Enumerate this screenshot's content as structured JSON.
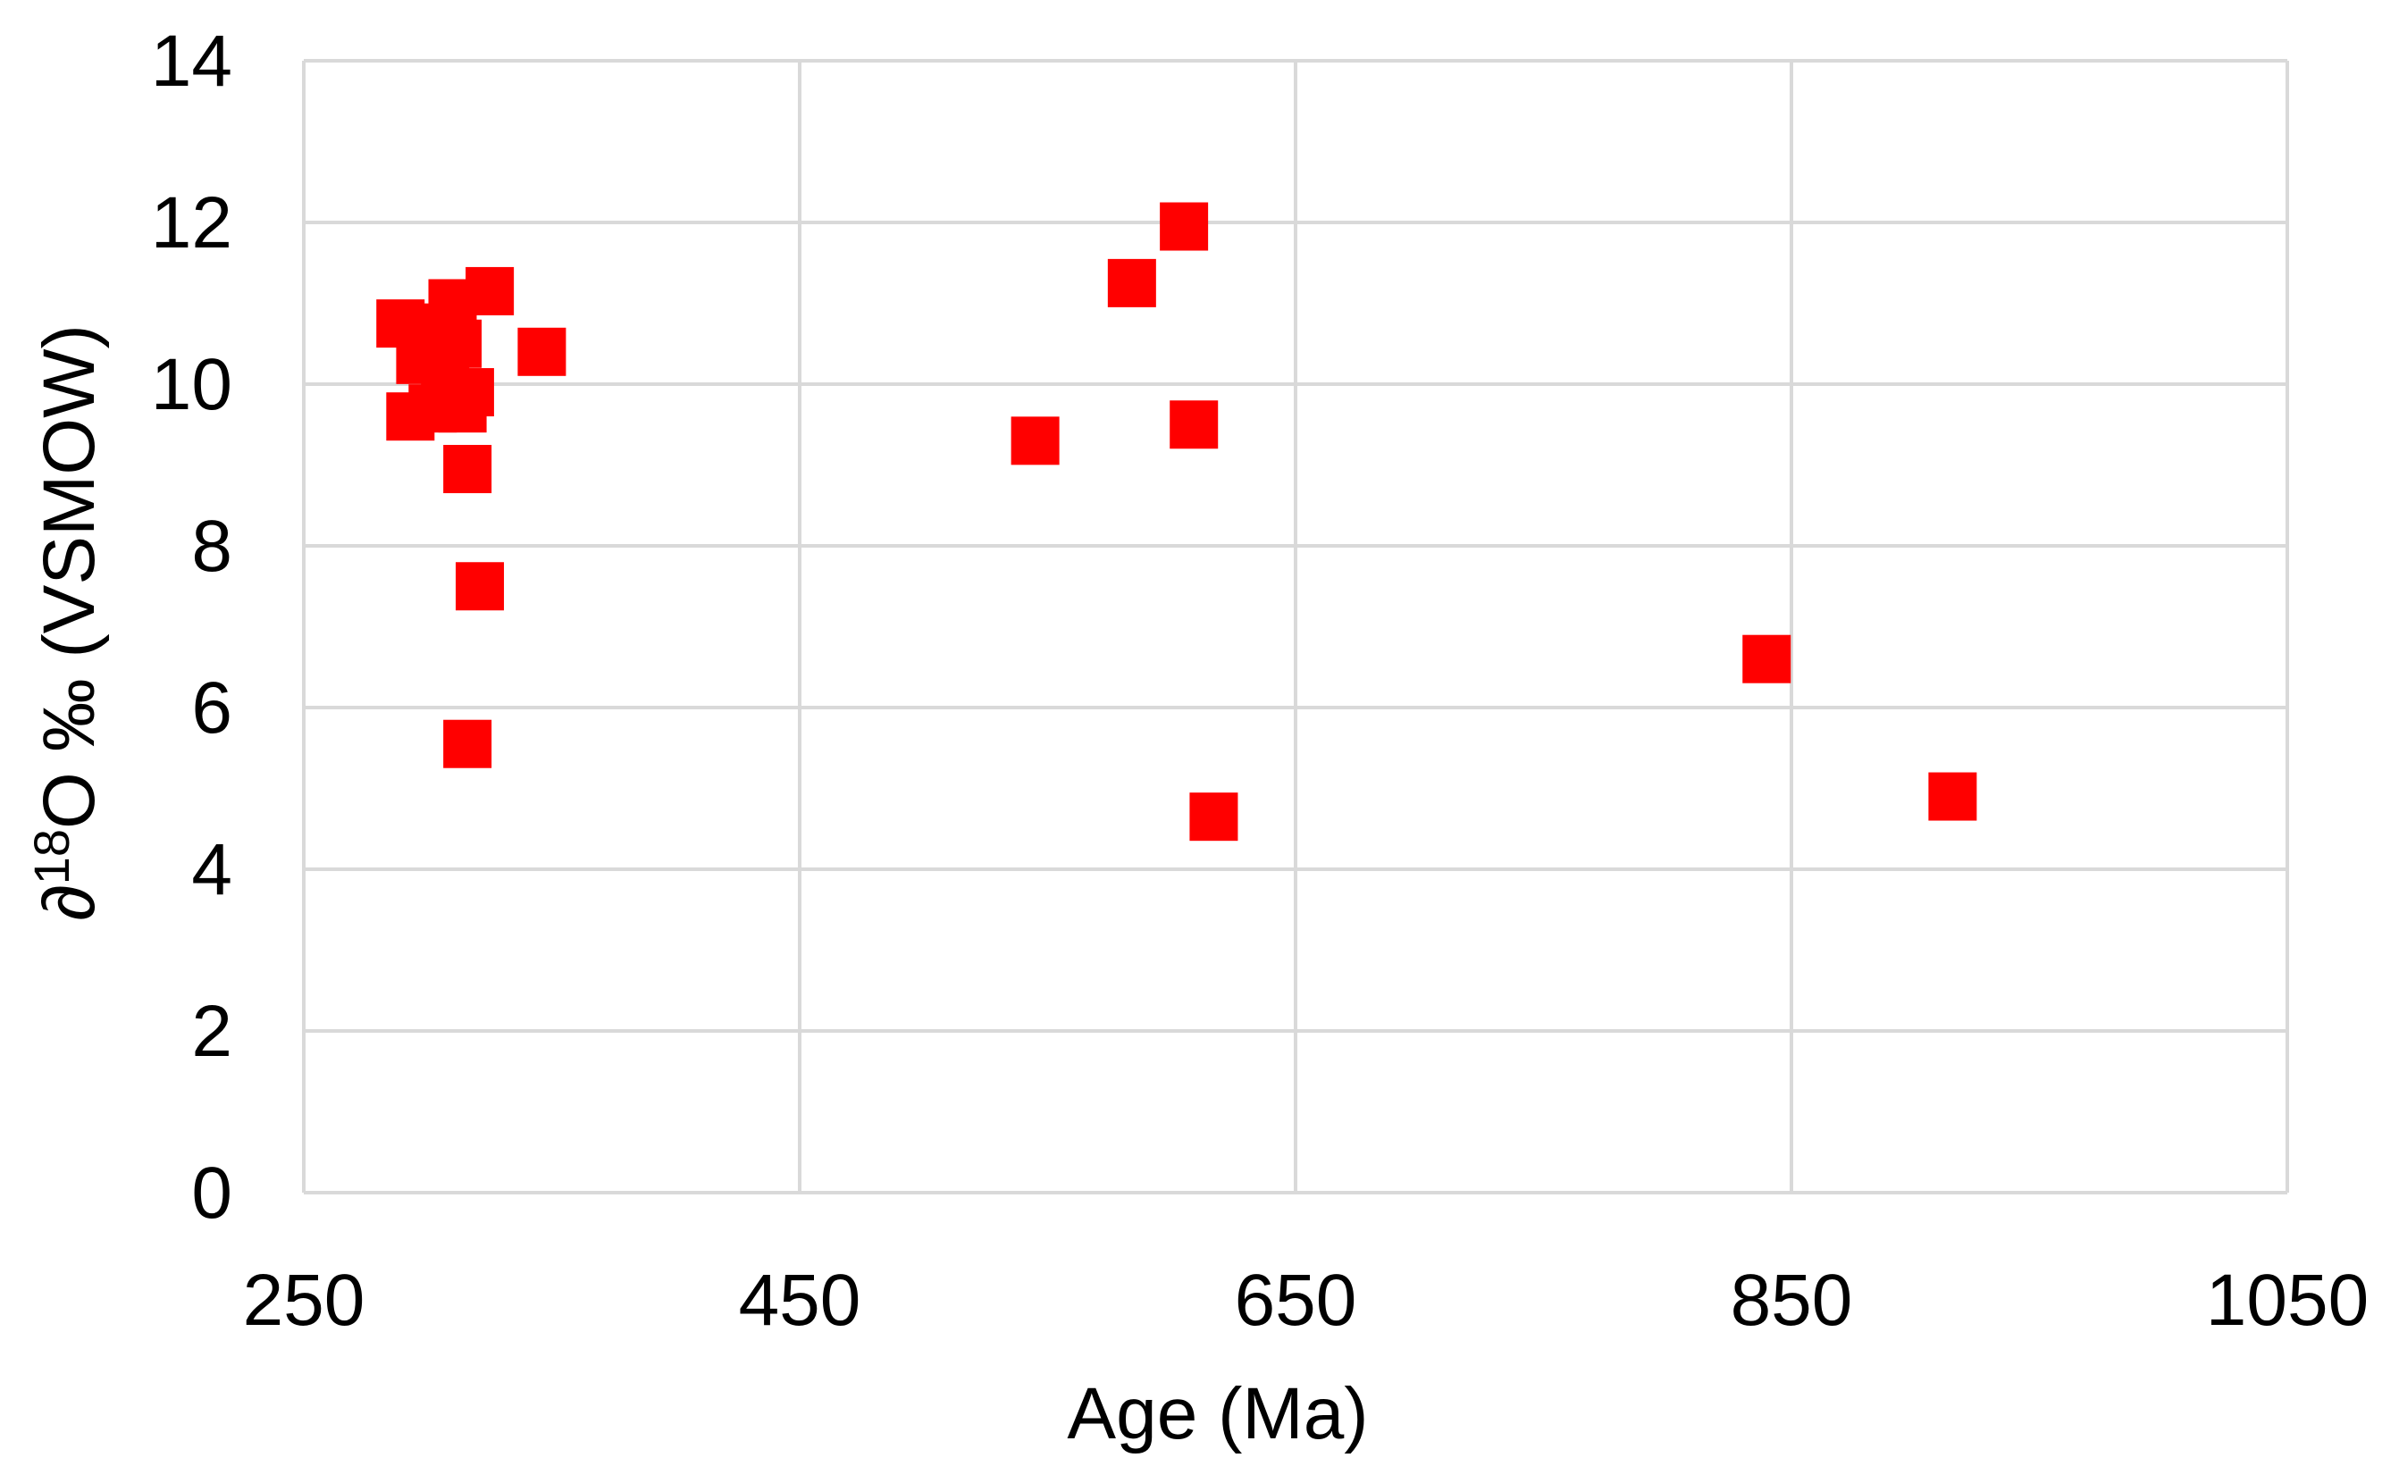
{
  "chart_data": {
    "type": "scatter",
    "title": "",
    "xlabel": "Age (Ma)",
    "ylabel_parts": {
      "symbol": "∂",
      "superscript": "18",
      "rest": "O ‰ (VSMOW)"
    },
    "xlim": [
      250,
      1050
    ],
    "ylim": [
      0,
      14
    ],
    "x_ticks": [
      250,
      450,
      650,
      850,
      1050
    ],
    "y_ticks": [
      0,
      2,
      4,
      6,
      8,
      10,
      12,
      14
    ],
    "grid": true,
    "legend": "none",
    "marker": "square",
    "marker_color": "#ff0000",
    "points": [
      {
        "x": 289,
        "y": 10.75
      },
      {
        "x": 299,
        "y": 10.7
      },
      {
        "x": 293,
        "y": 9.6
      },
      {
        "x": 297,
        "y": 10.3
      },
      {
        "x": 302,
        "y": 9.7
      },
      {
        "x": 307,
        "y": 10.2
      },
      {
        "x": 310,
        "y": 11.0
      },
      {
        "x": 312,
        "y": 10.5
      },
      {
        "x": 314,
        "y": 9.7
      },
      {
        "x": 317,
        "y": 9.9
      },
      {
        "x": 316,
        "y": 8.95
      },
      {
        "x": 316,
        "y": 5.55
      },
      {
        "x": 321,
        "y": 7.5
      },
      {
        "x": 325,
        "y": 11.15
      },
      {
        "x": 346,
        "y": 10.4
      },
      {
        "x": 545,
        "y": 9.3
      },
      {
        "x": 584,
        "y": 11.25
      },
      {
        "x": 605,
        "y": 11.95
      },
      {
        "x": 609,
        "y": 9.5
      },
      {
        "x": 617,
        "y": 4.65
      },
      {
        "x": 840,
        "y": 6.6
      },
      {
        "x": 915,
        "y": 4.9
      }
    ]
  }
}
